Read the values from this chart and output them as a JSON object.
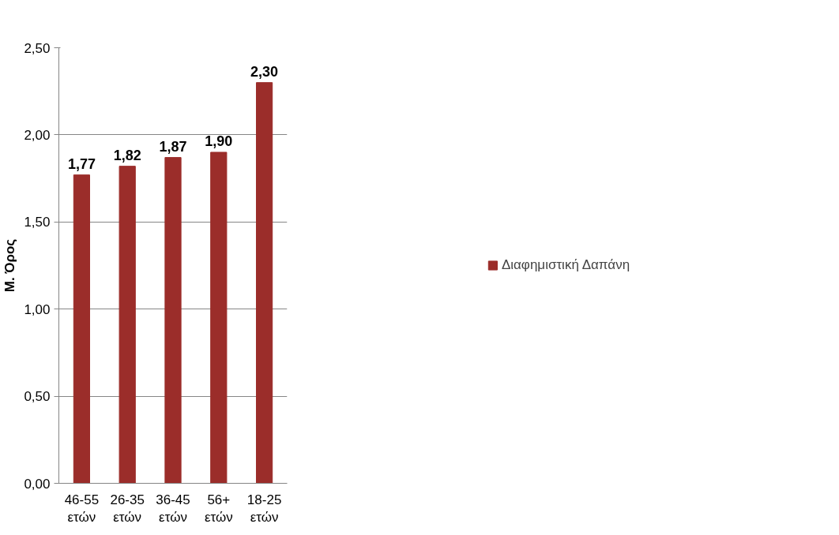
{
  "chart_data": {
    "type": "bar",
    "ylabel": "Μ. Όρος",
    "categories": [
      "46-55 ετών",
      "26-35 ετών",
      "36-45 ετών",
      "56+ ετών",
      "18-25 ετών"
    ],
    "series": [
      {
        "name": "Διαφημιστική Δαπάνη",
        "color": "#9b2d2a",
        "values": [
          1.77,
          1.82,
          1.87,
          1.9,
          2.3
        ],
        "value_labels": [
          "1,77",
          "1,82",
          "1,87",
          "1,90",
          "2,30"
        ]
      }
    ],
    "ylim": [
      0,
      2.5
    ],
    "yticks": [
      {
        "value": 0,
        "label": "0,00"
      },
      {
        "value": 0.5,
        "label": "0,50"
      },
      {
        "value": 1,
        "label": "1,00"
      },
      {
        "value": 1.5,
        "label": "1,50"
      },
      {
        "value": 2,
        "label": "2,00"
      },
      {
        "value": 2.5,
        "label": "2,50"
      }
    ],
    "grid": "y",
    "legend": "right"
  }
}
